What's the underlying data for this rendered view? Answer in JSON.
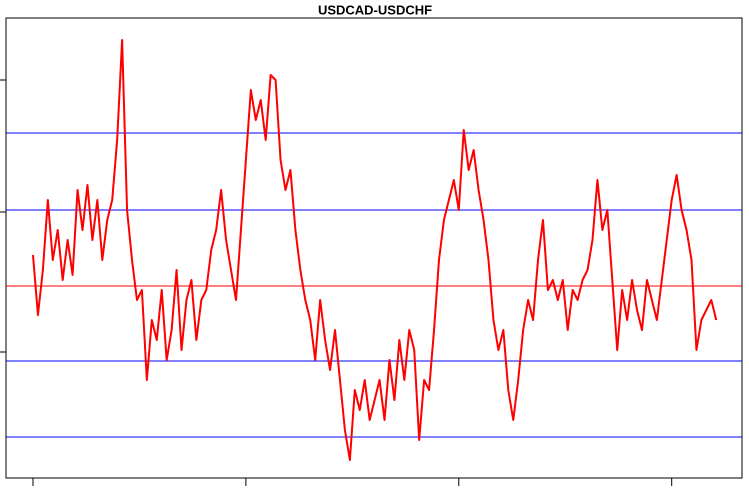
{
  "chart_data": {
    "type": "line",
    "title": "USDCAD-USDCHF",
    "color": "#ff0000",
    "values": [
      225,
      165,
      210,
      280,
      220,
      250,
      200,
      240,
      205,
      290,
      250,
      295,
      240,
      280,
      220,
      260,
      280,
      340,
      440,
      270,
      220,
      180,
      190,
      100,
      160,
      140,
      190,
      120,
      150,
      210,
      130,
      180,
      200,
      140,
      180,
      190,
      230,
      250,
      290,
      240,
      210,
      180,
      250,
      320,
      390,
      360,
      380,
      340,
      405,
      400,
      320,
      290,
      310,
      250,
      210,
      180,
      160,
      120,
      180,
      140,
      110,
      150,
      100,
      50,
      20,
      90,
      70,
      100,
      60,
      80,
      100,
      60,
      120,
      80,
      140,
      100,
      150,
      130,
      40,
      100,
      90,
      150,
      220,
      260,
      280,
      300,
      270,
      350,
      310,
      330,
      290,
      260,
      220,
      160,
      130,
      150,
      90,
      60,
      100,
      150,
      180,
      160,
      220,
      260,
      190,
      200,
      180,
      200,
      150,
      190,
      180,
      200,
      210,
      240,
      300,
      250,
      270,
      200,
      130,
      190,
      160,
      200,
      170,
      150,
      200,
      180,
      160,
      200,
      240,
      280,
      305,
      270,
      250,
      220,
      130,
      160,
      170,
      180,
      160
    ],
    "xlim": [
      -5.45,
      143.2
    ],
    "xticks": [
      0,
      43,
      86,
      129
    ],
    "ylim": [
      2,
      462
    ],
    "yticks": [
      400,
      268,
      128
    ],
    "hlines": [
      {
        "value": 347,
        "color": "#0000ff"
      },
      {
        "value": 270,
        "color": "#0000ff"
      },
      {
        "value": 194,
        "color": "#ff0000"
      },
      {
        "value": 119,
        "color": "#0000ff"
      },
      {
        "value": 43,
        "color": "#0000ff"
      }
    ]
  }
}
